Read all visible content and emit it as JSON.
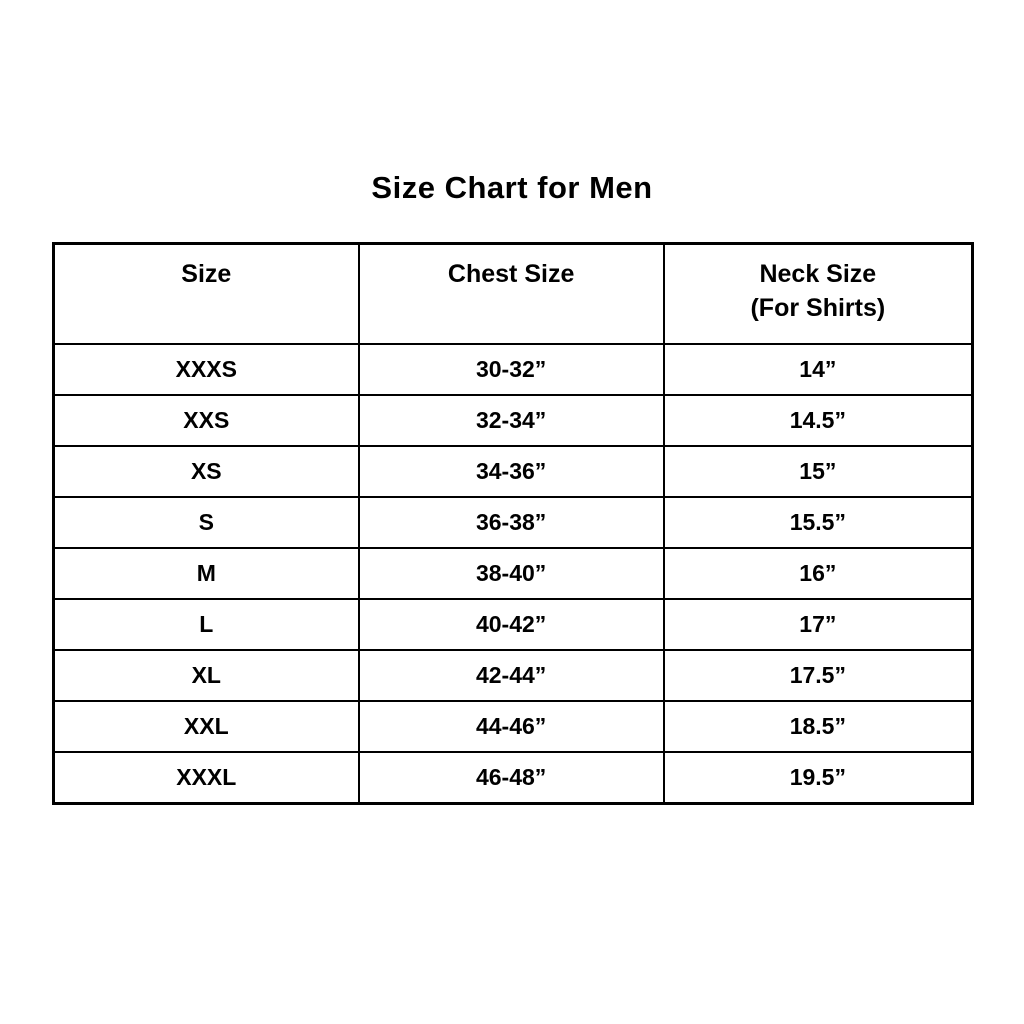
{
  "page_title": "Size Chart for Men",
  "colors": {
    "background": "#ffffff",
    "text": "#000000",
    "border": "#000000"
  },
  "table": {
    "headers": {
      "size": "Size",
      "chest": "Chest Size",
      "neck_line1": "Neck Size",
      "neck_line2": "(For Shirts)"
    },
    "rows": [
      {
        "size": "XXXS",
        "chest": "30-32”",
        "neck": "14”"
      },
      {
        "size": "XXS",
        "chest": "32-34”",
        "neck": "14.5”"
      },
      {
        "size": "XS",
        "chest": "34-36”",
        "neck": "15”"
      },
      {
        "size": "S",
        "chest": "36-38”",
        "neck": "15.5”"
      },
      {
        "size": "M",
        "chest": "38-40”",
        "neck": "16”"
      },
      {
        "size": "L",
        "chest": "40-42”",
        "neck": "17”"
      },
      {
        "size": "XL",
        "chest": "42-44”",
        "neck": "17.5”"
      },
      {
        "size": "XXL",
        "chest": "44-46”",
        "neck": "18.5”"
      },
      {
        "size": "XXXL",
        "chest": "46-48”",
        "neck": "19.5”"
      }
    ]
  }
}
